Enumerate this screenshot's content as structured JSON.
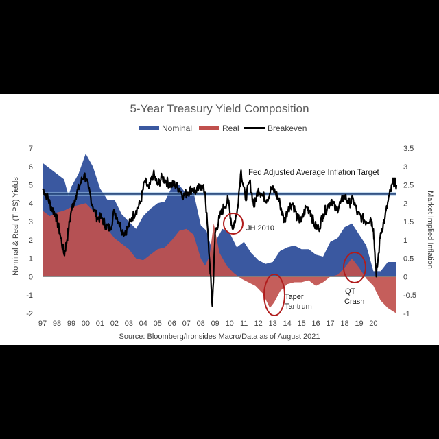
{
  "chart_data": {
    "type": "area",
    "title": "5-Year Treasury Yield Composition",
    "legend": [
      {
        "name": "Nominal",
        "color": "#3a58a0"
      },
      {
        "name": "Real",
        "color": "#c0504d"
      },
      {
        "name": "Breakeven",
        "color": "#000000"
      }
    ],
    "legend_position": "top-center",
    "ylabel_left": "Nominal & Real (TIPS) Yields",
    "ylabel_right": "Market Implied Inflation",
    "source": "Source: Bloomberg/Ironsides Macro/Data as of August 2021",
    "x_ticks": [
      "97",
      "98",
      "99",
      "00",
      "01",
      "02",
      "03",
      "04",
      "05",
      "06",
      "07",
      "08",
      "09",
      "10",
      "11",
      "12",
      "13",
      "14",
      "15",
      "16",
      "17",
      "18",
      "19",
      "20"
    ],
    "x_range": [
      1997,
      2021.6
    ],
    "y_left_range": [
      -2,
      7
    ],
    "y_left_ticks": [
      "-2",
      "-1",
      "0",
      "1",
      "2",
      "3",
      "4",
      "5",
      "6",
      "7"
    ],
    "y_right_range": [
      -1,
      3.5
    ],
    "y_right_ticks": [
      "-1",
      "-0.5",
      "0",
      "0.5",
      "1",
      "1.5",
      "2",
      "2.5",
      "3",
      "3.5"
    ],
    "target_line": {
      "label": "Fed Adjusted Average Inflation Target",
      "value_left_axis": 4.5,
      "value_right_axis": 2.25,
      "color": "#1f3f75"
    },
    "series": [
      {
        "name": "Nominal",
        "x": [
          1997,
          1997.5,
          1998,
          1998.5,
          1998.8,
          1999,
          1999.5,
          2000,
          2000.5,
          2001,
          2001.5,
          2002,
          2002.5,
          2003,
          2003.5,
          2004,
          2004.5,
          2005,
          2005.5,
          2006,
          2006.5,
          2007,
          2007.5,
          2008,
          2008.4,
          2008.8,
          2009,
          2009.5,
          2010,
          2010.5,
          2011,
          2011.5,
          2012,
          2012.5,
          2013,
          2013.5,
          2014,
          2014.5,
          2015,
          2015.5,
          2016,
          2016.5,
          2017,
          2017.5,
          2018,
          2018.5,
          2019,
          2019.5,
          2020,
          2020.5,
          2021,
          2021.6
        ],
        "values": [
          6.2,
          5.9,
          5.6,
          5.3,
          4.4,
          4.9,
          5.6,
          6.7,
          6.0,
          4.8,
          4.2,
          4.2,
          3.4,
          3.0,
          2.6,
          3.3,
          3.7,
          4.0,
          4.1,
          4.9,
          5.0,
          4.5,
          4.6,
          2.8,
          2.5,
          1.4,
          1.9,
          2.6,
          2.4,
          1.6,
          1.9,
          1.3,
          0.9,
          0.7,
          0.8,
          1.4,
          1.6,
          1.7,
          1.5,
          1.5,
          1.2,
          1.1,
          1.9,
          2.1,
          2.7,
          2.9,
          2.3,
          1.7,
          0.3,
          0.3,
          0.8,
          0.8
        ]
      },
      {
        "name": "Real",
        "x": [
          1997,
          1997.5,
          1998,
          1998.5,
          1999,
          1999.5,
          2000,
          2000.5,
          2001,
          2001.5,
          2002,
          2002.5,
          2003,
          2003.5,
          2004,
          2004.5,
          2005,
          2005.5,
          2006,
          2006.5,
          2007,
          2007.5,
          2008,
          2008.3,
          2008.6,
          2008.9,
          2009.3,
          2009.8,
          2010.3,
          2010.8,
          2011.3,
          2011.8,
          2012.3,
          2012.8,
          2013.1,
          2013.5,
          2014,
          2014.5,
          2015,
          2015.5,
          2016,
          2016.5,
          2017,
          2017.5,
          2018,
          2018.5,
          2019,
          2019.5,
          2020,
          2020.5,
          2021,
          2021.6
        ],
        "values": [
          3.6,
          3.3,
          3.5,
          3.6,
          3.8,
          3.9,
          4.0,
          3.6,
          3.2,
          2.6,
          2.1,
          1.8,
          1.5,
          1.0,
          0.9,
          1.2,
          1.5,
          1.6,
          2.0,
          2.5,
          2.6,
          2.3,
          1.0,
          0.6,
          1.1,
          2.9,
          1.3,
          0.6,
          0.2,
          -0.1,
          -0.3,
          -0.5,
          -0.9,
          -1.7,
          -1.4,
          -0.8,
          -0.4,
          -0.3,
          -0.3,
          -0.2,
          -0.5,
          -0.3,
          0.0,
          0.1,
          0.5,
          1.0,
          0.5,
          -0.1,
          -0.5,
          -1.3,
          -1.7,
          -2.0
        ]
      },
      {
        "name": "Breakeven",
        "axis": "right",
        "x": [
          1997,
          1997.3,
          1997.6,
          1997.9,
          1998.2,
          1998.5,
          1998.7,
          1999,
          1999.3,
          1999.6,
          1999.9,
          2000.2,
          2000.5,
          2000.8,
          2001.1,
          2001.4,
          2001.7,
          2002,
          2002.3,
          2002.6,
          2002.9,
          2003.2,
          2003.5,
          2003.8,
          2004.1,
          2004.4,
          2004.7,
          2005,
          2005.3,
          2005.6,
          2005.9,
          2006.2,
          2006.5,
          2006.8,
          2007.1,
          2007.4,
          2007.7,
          2008,
          2008.3,
          2008.6,
          2008.8,
          2009,
          2009.3,
          2009.6,
          2009.9,
          2010.2,
          2010.5,
          2010.8,
          2011.1,
          2011.4,
          2011.7,
          2012,
          2012.3,
          2012.6,
          2012.9,
          2013.2,
          2013.5,
          2013.8,
          2014.1,
          2014.4,
          2014.7,
          2015,
          2015.3,
          2015.6,
          2015.9,
          2016.2,
          2016.5,
          2016.8,
          2017.1,
          2017.4,
          2017.7,
          2018,
          2018.3,
          2018.6,
          2018.9,
          2019.2,
          2019.5,
          2019.8,
          2020,
          2020.2,
          2020.5,
          2020.8,
          2021.1,
          2021.4,
          2021.6
        ],
        "values": [
          2.4,
          2.2,
          1.9,
          1.7,
          1.2,
          0.6,
          1.0,
          1.8,
          2.2,
          2.5,
          2.8,
          2.4,
          1.9,
          1.6,
          1.6,
          1.4,
          1.3,
          1.8,
          1.5,
          1.2,
          1.3,
          1.6,
          1.8,
          2.0,
          2.6,
          2.4,
          2.8,
          2.5,
          2.7,
          2.6,
          2.5,
          2.5,
          2.4,
          2.2,
          2.3,
          2.4,
          2.3,
          2.5,
          2.3,
          0.5,
          -0.8,
          1.2,
          1.6,
          1.9,
          2.1,
          1.3,
          1.7,
          2.9,
          2.1,
          2.6,
          1.9,
          2.4,
          2.2,
          2.1,
          2.4,
          2.3,
          2.0,
          1.5,
          1.9,
          2.0,
          1.6,
          1.5,
          1.9,
          1.8,
          1.4,
          1.3,
          1.7,
          1.9,
          2.1,
          1.8,
          2.0,
          2.2,
          2.0,
          2.1,
          1.7,
          1.6,
          1.5,
          1.6,
          1.3,
          0.0,
          1.2,
          1.6,
          2.2,
          2.6,
          2.5
        ]
      }
    ],
    "annotations": [
      {
        "label": "JH 2010"
      },
      {
        "label": "Taper",
        "label2": "Tantrum"
      },
      {
        "label": "QT",
        "label2": "Crash"
      }
    ]
  }
}
